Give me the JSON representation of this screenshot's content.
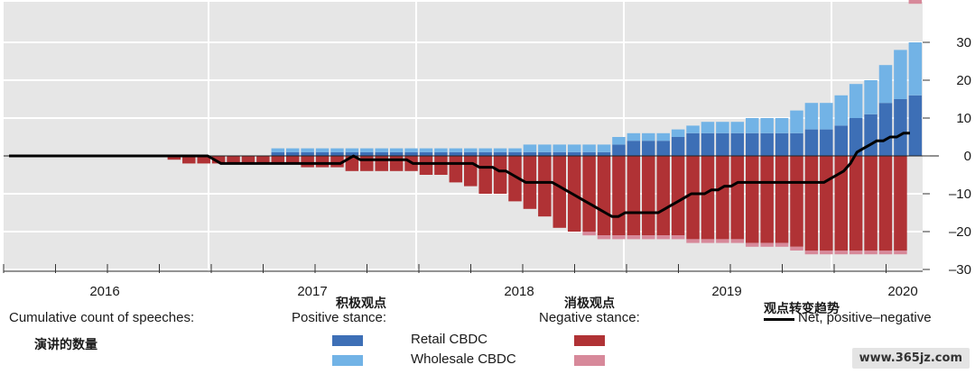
{
  "chart_data": {
    "type": "bar",
    "subtype": "stacked-bar-with-line",
    "x_tick_labels": [
      "2016",
      "2017",
      "2018",
      "2019",
      "2020"
    ],
    "y_ticks": [
      30,
      20,
      10,
      0,
      -10,
      -20,
      -30
    ],
    "y_tick_labels": [
      "30",
      "20",
      "10",
      "0",
      "–10",
      "–20",
      "–30"
    ],
    "ylim": [
      -30,
      33
    ],
    "y_axis_side": "right",
    "grid": true,
    "start_period": "2015-07",
    "series": [
      {
        "name": "Retail CBDC",
        "group": "positive",
        "color": "#3d6fb6",
        "values": [
          0,
          0,
          0,
          0,
          0,
          0,
          0,
          0,
          0,
          0,
          0,
          0,
          0,
          0,
          0,
          0,
          0,
          0,
          0,
          0,
          0,
          0,
          0,
          0,
          0,
          0,
          0,
          0,
          0,
          0,
          0,
          0,
          0,
          0,
          0,
          0,
          0,
          0,
          0,
          0,
          0,
          0,
          0,
          0,
          0,
          0,
          0,
          0,
          0,
          0,
          0,
          0,
          1,
          1,
          1,
          1,
          1,
          1,
          1,
          1,
          1,
          1,
          1,
          1,
          1,
          1,
          1,
          1,
          1,
          1,
          1,
          1,
          1,
          1,
          1,
          1,
          1,
          1,
          1,
          1,
          1,
          1,
          1,
          1,
          1,
          1,
          1,
          1,
          1,
          1,
          1,
          1,
          1,
          1,
          1,
          1,
          1,
          1,
          1,
          1,
          1,
          1,
          1,
          1,
          1,
          1,
          1,
          1,
          1,
          1,
          1,
          1,
          1,
          1,
          1,
          1,
          1,
          1,
          1,
          1,
          1,
          1,
          3,
          3,
          3,
          4,
          4,
          4,
          4,
          4,
          4,
          4,
          4,
          4,
          5,
          5,
          5,
          6,
          6,
          6,
          6,
          6,
          6,
          6,
          6,
          6,
          6,
          6,
          6,
          6,
          6,
          6,
          6,
          6,
          6,
          6,
          6,
          6,
          6,
          6,
          6,
          6,
          7,
          7,
          7,
          7,
          7,
          7,
          8,
          8,
          8,
          10,
          10,
          10,
          11,
          11,
          11,
          14,
          14,
          14,
          15,
          15,
          15,
          16,
          16,
          16
        ]
      },
      {
        "name": "Wholesale CBDC",
        "group": "positive",
        "color": "#72b3e6",
        "values": [
          0,
          0,
          0,
          0,
          0,
          0,
          0,
          0,
          0,
          0,
          0,
          0,
          0,
          0,
          0,
          0,
          0,
          0,
          0,
          0,
          0,
          0,
          0,
          0,
          0,
          0,
          0,
          0,
          0,
          0,
          0,
          0,
          0,
          0,
          0,
          0,
          0,
          0,
          0,
          0,
          0,
          0,
          0,
          0,
          0,
          0,
          0,
          0,
          0,
          0,
          0,
          0,
          1,
          1,
          1,
          1,
          1,
          1,
          1,
          1,
          1,
          1,
          1,
          1,
          1,
          1,
          1,
          1,
          1,
          1,
          1,
          1,
          1,
          1,
          1,
          1,
          1,
          1,
          1,
          1,
          1,
          1,
          1,
          1,
          1,
          1,
          1,
          1,
          1,
          1,
          1,
          1,
          1,
          1,
          1,
          1,
          1,
          1,
          1,
          1,
          1,
          1,
          1,
          1,
          1,
          2,
          2,
          2,
          2,
          2,
          2,
          2,
          2,
          2,
          2,
          2,
          2,
          2,
          2,
          2,
          2,
          2,
          2,
          2,
          2,
          2,
          2,
          2,
          2,
          2,
          2,
          2,
          2,
          2,
          2,
          2,
          2,
          2,
          2,
          2,
          2,
          3,
          3,
          3,
          3,
          3,
          3,
          3,
          3,
          3,
          4,
          4,
          4,
          4,
          4,
          4,
          4,
          4,
          4,
          6,
          6,
          6,
          7,
          7,
          7,
          7,
          7,
          7,
          8,
          8,
          8,
          9,
          9,
          9,
          9,
          9,
          9,
          10,
          10,
          10,
          13,
          13,
          13,
          14,
          14,
          14,
          15,
          15,
          15,
          16,
          16,
          16,
          16,
          16,
          16
        ]
      },
      {
        "name": "Retail CBDC",
        "group": "negative",
        "color": "#b03235",
        "values": [
          0,
          0,
          0,
          0,
          0,
          0,
          0,
          0,
          0,
          0,
          0,
          0,
          0,
          0,
          0,
          0,
          0,
          0,
          0,
          0,
          0,
          0,
          0,
          0,
          0,
          0,
          0,
          0,
          0,
          0,
          0,
          -1,
          -1,
          -1,
          -2,
          -2,
          -2,
          -2,
          -2,
          -2,
          -2,
          -2,
          -2,
          -2,
          -2,
          -2,
          -2,
          -2,
          -2,
          -2,
          -2,
          -2,
          -2,
          -2,
          -2,
          -2,
          -2,
          -2,
          -3,
          -3,
          -3,
          -3,
          -3,
          -3,
          -3,
          -3,
          -3,
          -4,
          -4,
          -4,
          -4,
          -4,
          -4,
          -4,
          -4,
          -4,
          -4,
          -4,
          -4,
          -4,
          -4,
          -4,
          -5,
          -5,
          -5,
          -5,
          -5,
          -5,
          -7,
          -7,
          -7,
          -8,
          -8,
          -8,
          -10,
          -10,
          -10,
          -10,
          -10,
          -10,
          -12,
          -12,
          -12,
          -14,
          -14,
          -14,
          -16,
          -16,
          -16,
          -19,
          -19,
          -19,
          -20,
          -20,
          -20,
          -20,
          -20,
          -20,
          -21,
          -21,
          -21,
          -21,
          -21,
          -21,
          -21,
          -21,
          -21,
          -21,
          -21,
          -21,
          -21,
          -21,
          -21,
          -21,
          -21,
          -21,
          -22,
          -22,
          -22,
          -22,
          -22,
          -22,
          -22,
          -22,
          -22,
          -22,
          -22,
          -22,
          -23,
          -23,
          -23,
          -23,
          -23,
          -23,
          -23,
          -23,
          -23,
          -24,
          -24,
          -24,
          -25,
          -25,
          -25,
          -25,
          -25,
          -25,
          -25,
          -25,
          -25,
          -25,
          -25,
          -25,
          -25,
          -25,
          -25,
          -25,
          -25,
          -25,
          -25,
          -25,
          -25
        ]
      },
      {
        "name": "Wholesale CBDC",
        "group": "negative",
        "color": "#d7899a",
        "values": [
          0,
          0,
          0,
          0,
          0,
          0,
          0,
          0,
          0,
          0,
          0,
          0,
          0,
          0,
          0,
          0,
          0,
          0,
          0,
          0,
          0,
          0,
          0,
          0,
          0,
          0,
          0,
          0,
          0,
          0,
          0,
          0,
          0,
          0,
          0,
          0,
          0,
          0,
          0,
          0,
          0,
          0,
          0,
          0,
          0,
          0,
          0,
          0,
          0,
          0,
          0,
          0,
          0,
          0,
          0,
          0,
          0,
          0,
          0,
          0,
          0,
          0,
          0,
          0,
          0,
          0,
          0,
          0,
          0,
          0,
          0,
          0,
          0,
          0,
          0,
          0,
          0,
          0,
          0,
          0,
          0,
          0,
          0,
          0,
          0,
          0,
          0,
          0,
          0,
          0,
          0,
          0,
          0,
          0,
          0,
          0,
          0,
          0,
          0,
          0,
          0,
          0,
          0,
          0,
          0,
          0,
          0,
          0,
          0,
          0,
          0,
          0,
          0,
          0,
          0,
          -1,
          -1,
          -1,
          -1,
          -1,
          -1,
          -1,
          -1,
          -1,
          -1,
          -1,
          -1,
          -1,
          -1,
          -1,
          -1,
          -1,
          -1,
          -1,
          -1,
          -1,
          -1,
          -1,
          -1,
          -1,
          -1,
          -1,
          -1,
          -1,
          -1,
          -1,
          -1,
          -1,
          -1,
          -1,
          -1,
          -1,
          -1,
          -1,
          -1,
          -1,
          -1,
          -1,
          -1,
          -1,
          -1,
          -1,
          -1,
          -1,
          -1,
          -1,
          -1,
          -1,
          -1,
          -1,
          -1,
          -1,
          -1,
          -1,
          -1,
          -1,
          -1,
          -1,
          -1,
          -1,
          -1,
          -1,
          -1,
          -1,
          -1,
          -1,
          -1,
          -1,
          -1
        ]
      }
    ],
    "line": {
      "name": "Net, positive–negative",
      "color": "#000000",
      "values": [
        0,
        0,
        0,
        0,
        0,
        0,
        0,
        0,
        0,
        0,
        0,
        0,
        0,
        0,
        0,
        0,
        0,
        0,
        0,
        0,
        0,
        0,
        0,
        0,
        0,
        0,
        0,
        0,
        0,
        0,
        0,
        -1,
        -2,
        -2,
        -2,
        -2,
        -2,
        -2,
        -2,
        -2,
        -2,
        -2,
        -2,
        -2,
        -2,
        -2,
        -2,
        -2,
        -2,
        -2,
        -2,
        -1,
        0,
        -1,
        -1,
        -1,
        -1,
        -1,
        -1,
        -1,
        -1,
        -2,
        -2,
        -2,
        -2,
        -2,
        -2,
        -2,
        -2,
        -2,
        -2,
        -3,
        -3,
        -3,
        -4,
        -4,
        -5,
        -6,
        -7,
        -7,
        -7,
        -7,
        -7,
        -8,
        -9,
        -10,
        -11,
        -12,
        -13,
        -14,
        -15,
        -16,
        -16,
        -15,
        -15,
        -15,
        -15,
        -15,
        -15,
        -14,
        -13,
        -12,
        -11,
        -10,
        -10,
        -10,
        -9,
        -9,
        -8,
        -8,
        -7,
        -7,
        -7,
        -7,
        -7,
        -7,
        -7,
        -7,
        -7,
        -7,
        -7,
        -7,
        -7,
        -7,
        -6,
        -5,
        -4,
        -2,
        1,
        2,
        3,
        4,
        4,
        5,
        5,
        6,
        6
      ],
      "note": "monthly net stance from 2015-07 to 2020-03"
    },
    "legend": {
      "count_label": "Cumulative count of speeches:",
      "positive_label": "Positive stance:",
      "negative_label": "Negative stance:",
      "net_label": "Net, positive–negative",
      "retail_label": "Retail CBDC",
      "wholesale_label": "Wholesale CBDC"
    }
  },
  "overlay": {
    "cn_positive": "积极观点",
    "cn_negative": "消极观点",
    "cn_trend": "观点转变趋势",
    "cn_count": "演讲的数量",
    "watermark": "www.365jz.com"
  }
}
